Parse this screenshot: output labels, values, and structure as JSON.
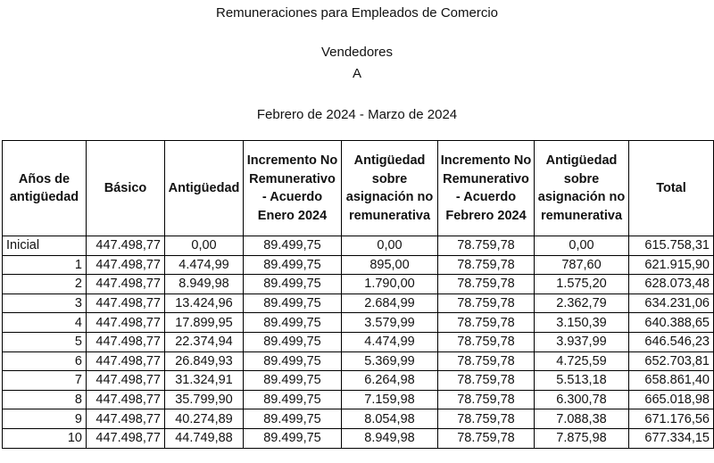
{
  "header": {
    "title": "Remuneraciones para Empleados de Comercio",
    "category": "Vendedores",
    "subcategory": "A",
    "period": "Febrero de 2024 - Marzo de 2024"
  },
  "table": {
    "columns": [
      "Años de antigüedad",
      "Básico",
      "Antigüedad",
      "Incremento No Remunerativo - Acuerdo Enero 2024",
      "Antigüedad sobre asignación no remunerativa",
      "Incremento No Remunerativo - Acuerdo Febrero 2024",
      "Antigüedad sobre asignación no remunerativa",
      "Total"
    ],
    "rows": [
      [
        "Inicial",
        "447.498,77",
        "0,00",
        "89.499,75",
        "0,00",
        "78.759,78",
        "0,00",
        "615.758,31"
      ],
      [
        "1",
        "447.498,77",
        "4.474,99",
        "89.499,75",
        "895,00",
        "78.759,78",
        "787,60",
        "621.915,90"
      ],
      [
        "2",
        "447.498,77",
        "8.949,98",
        "89.499,75",
        "1.790,00",
        "78.759,78",
        "1.575,20",
        "628.073,48"
      ],
      [
        "3",
        "447.498,77",
        "13.424,96",
        "89.499,75",
        "2.684,99",
        "78.759,78",
        "2.362,79",
        "634.231,06"
      ],
      [
        "4",
        "447.498,77",
        "17.899,95",
        "89.499,75",
        "3.579,99",
        "78.759,78",
        "3.150,39",
        "640.388,65"
      ],
      [
        "5",
        "447.498,77",
        "22.374,94",
        "89.499,75",
        "4.474,99",
        "78.759,78",
        "3.937,99",
        "646.546,23"
      ],
      [
        "6",
        "447.498,77",
        "26.849,93",
        "89.499,75",
        "5.369,99",
        "78.759,78",
        "4.725,59",
        "652.703,81"
      ],
      [
        "7",
        "447.498,77",
        "31.324,91",
        "89.499,75",
        "6.264,98",
        "78.759,78",
        "5.513,18",
        "658.861,40"
      ],
      [
        "8",
        "447.498,77",
        "35.799,90",
        "89.499,75",
        "7.159,98",
        "78.759,78",
        "6.300,78",
        "665.018,98"
      ],
      [
        "9",
        "447.498,77",
        "40.274,89",
        "89.499,75",
        "8.054,98",
        "78.759,78",
        "7.088,38",
        "671.176,56"
      ],
      [
        "10",
        "447.498,77",
        "44.749,88",
        "89.499,75",
        "8.949,98",
        "78.759,78",
        "7.875,98",
        "677.334,15"
      ]
    ]
  }
}
